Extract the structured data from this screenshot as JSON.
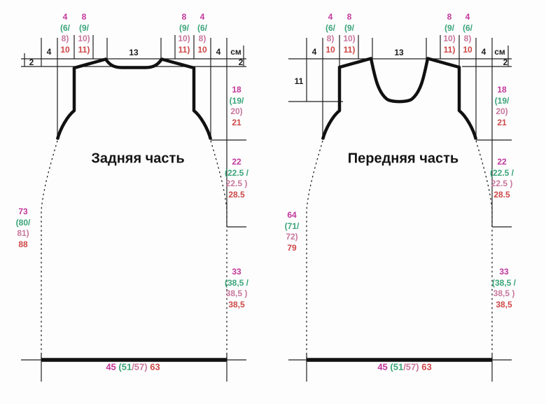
{
  "colors": {
    "size1": "#c2389a",
    "size2": "#3aa57a",
    "size3": "#c9779d",
    "size4": "#ce4747",
    "line": "#1f1f1f"
  },
  "back": {
    "title": "Задняя часть",
    "top": {
      "edge_offset_left": "2",
      "margin_left": "4",
      "shoulder_outer_left": [
        "4",
        "(6/",
        "8)",
        "10"
      ],
      "shoulder_inner_left": [
        "8",
        "(9/",
        "10)",
        "11)"
      ],
      "neck_width": "13",
      "shoulder_inner_right": [
        "8",
        "(9/",
        "10)",
        "11)"
      ],
      "shoulder_outer_right": [
        "4",
        "(6/",
        "8)",
        "10"
      ],
      "margin_right": "4",
      "unit": "см",
      "edge_offset_right": "2"
    },
    "total_length": [
      "73",
      "(80/",
      "81)",
      "88"
    ],
    "armhole_depth": [
      "18",
      "(19/",
      "20)",
      "21"
    ],
    "upper_side_length": [
      "22",
      "(22.5 /",
      "22.5 )",
      "28.5"
    ],
    "lower_side_length": [
      "33",
      "(38,5 /",
      "38,5 )",
      "38,5"
    ],
    "bottom_width": [
      "45 ",
      "(51",
      "/57) ",
      "63"
    ]
  },
  "front": {
    "title": "Передняя часть",
    "neck_depth": "11",
    "top": {
      "margin_left": "4",
      "shoulder_outer_left": [
        "4",
        "(6/",
        "8)",
        "10"
      ],
      "shoulder_inner_left": [
        "8",
        "(9/",
        "10)",
        "11)"
      ],
      "neck_width": "13",
      "shoulder_inner_right": [
        "8",
        "(9/",
        "10)",
        "11)"
      ],
      "shoulder_outer_right": [
        "4",
        "(6/",
        "8)",
        "10"
      ],
      "margin_right": "4",
      "unit": "см",
      "edge_offset_right": "2"
    },
    "total_length": [
      "64",
      "(71/",
      "72)",
      "79"
    ],
    "armhole_depth": [
      "18",
      "(19/",
      "20)",
      "21"
    ],
    "upper_side_length": [
      "22",
      "(22.5 /",
      "22.5 )",
      "28.5"
    ],
    "lower_side_length": [
      "33",
      "(38,5 /",
      "38,5 )",
      "38,5"
    ],
    "bottom_width": [
      "45 ",
      "(51",
      "/57) ",
      "63"
    ]
  }
}
